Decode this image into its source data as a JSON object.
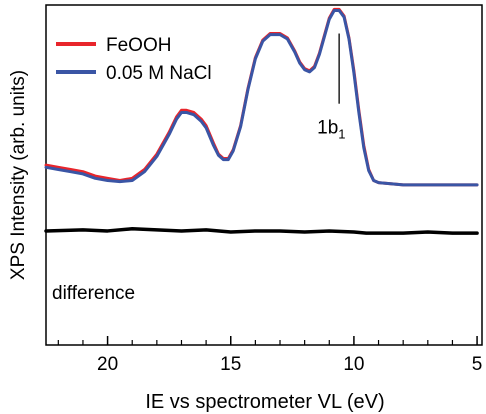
{
  "chart_data": {
    "type": "line",
    "xlabel": "IE vs spectrometer VL (eV)",
    "ylabel": "XPS Intensity (arb. units)",
    "xlim": [
      22.5,
      4.8
    ],
    "x_reversed": true,
    "ylim": [
      -0.55,
      1.0
    ],
    "grid": false,
    "legend_position": "top-left",
    "xticks": [
      20,
      15,
      10,
      5
    ],
    "xtick_labels": [
      "20",
      "15",
      "10",
      "5"
    ],
    "y_tick_labels_shown": false,
    "series": [
      {
        "name": "FeOOH",
        "color": "#e8252b",
        "points": [
          [
            22.5,
            0.27
          ],
          [
            22,
            0.26
          ],
          [
            21.5,
            0.25
          ],
          [
            21,
            0.24
          ],
          [
            20.5,
            0.22
          ],
          [
            20,
            0.21
          ],
          [
            19.5,
            0.2
          ],
          [
            19,
            0.21
          ],
          [
            18.5,
            0.25
          ],
          [
            18,
            0.32
          ],
          [
            17.5,
            0.42
          ],
          [
            17.2,
            0.49
          ],
          [
            17,
            0.52
          ],
          [
            16.8,
            0.52
          ],
          [
            16.5,
            0.51
          ],
          [
            16.2,
            0.48
          ],
          [
            16,
            0.45
          ],
          [
            15.7,
            0.37
          ],
          [
            15.5,
            0.32
          ],
          [
            15.3,
            0.3
          ],
          [
            15.1,
            0.3
          ],
          [
            14.9,
            0.34
          ],
          [
            14.6,
            0.45
          ],
          [
            14.3,
            0.62
          ],
          [
            14,
            0.76
          ],
          [
            13.7,
            0.84
          ],
          [
            13.4,
            0.87
          ],
          [
            13,
            0.87
          ],
          [
            12.7,
            0.85
          ],
          [
            12.4,
            0.79
          ],
          [
            12.2,
            0.74
          ],
          [
            12,
            0.71
          ],
          [
            11.8,
            0.7
          ],
          [
            11.6,
            0.72
          ],
          [
            11.4,
            0.78
          ],
          [
            11.2,
            0.86
          ],
          [
            11,
            0.94
          ],
          [
            10.8,
            0.98
          ],
          [
            10.6,
            0.98
          ],
          [
            10.4,
            0.95
          ],
          [
            10.2,
            0.85
          ],
          [
            10,
            0.7
          ],
          [
            9.8,
            0.52
          ],
          [
            9.6,
            0.36
          ],
          [
            9.4,
            0.25
          ],
          [
            9.2,
            0.2
          ],
          [
            9,
            0.19
          ],
          [
            8.5,
            0.185
          ],
          [
            8,
            0.18
          ],
          [
            7,
            0.18
          ],
          [
            6,
            0.18
          ],
          [
            5,
            0.18
          ]
        ]
      },
      {
        "name": "0.05 M NaCl",
        "color": "#3a55a5",
        "points": [
          [
            22.5,
            0.26
          ],
          [
            22,
            0.25
          ],
          [
            21.5,
            0.24
          ],
          [
            21,
            0.23
          ],
          [
            20.5,
            0.21
          ],
          [
            20,
            0.2
          ],
          [
            19.5,
            0.195
          ],
          [
            19,
            0.2
          ],
          [
            18.5,
            0.24
          ],
          [
            18,
            0.31
          ],
          [
            17.5,
            0.41
          ],
          [
            17.2,
            0.48
          ],
          [
            17,
            0.51
          ],
          [
            16.8,
            0.51
          ],
          [
            16.5,
            0.5
          ],
          [
            16.2,
            0.47
          ],
          [
            16,
            0.44
          ],
          [
            15.7,
            0.36
          ],
          [
            15.5,
            0.315
          ],
          [
            15.3,
            0.295
          ],
          [
            15.1,
            0.295
          ],
          [
            14.9,
            0.335
          ],
          [
            14.6,
            0.445
          ],
          [
            14.3,
            0.615
          ],
          [
            14,
            0.755
          ],
          [
            13.7,
            0.835
          ],
          [
            13.4,
            0.865
          ],
          [
            13,
            0.865
          ],
          [
            12.7,
            0.845
          ],
          [
            12.4,
            0.785
          ],
          [
            12.2,
            0.735
          ],
          [
            12,
            0.705
          ],
          [
            11.8,
            0.695
          ],
          [
            11.6,
            0.715
          ],
          [
            11.4,
            0.775
          ],
          [
            11.2,
            0.855
          ],
          [
            11,
            0.935
          ],
          [
            10.8,
            0.975
          ],
          [
            10.6,
            0.975
          ],
          [
            10.4,
            0.945
          ],
          [
            10.2,
            0.845
          ],
          [
            10,
            0.69
          ],
          [
            9.8,
            0.51
          ],
          [
            9.6,
            0.35
          ],
          [
            9.4,
            0.245
          ],
          [
            9.2,
            0.2
          ],
          [
            9,
            0.19
          ],
          [
            8.5,
            0.185
          ],
          [
            8,
            0.18
          ],
          [
            7,
            0.18
          ],
          [
            6,
            0.18
          ],
          [
            5,
            0.18
          ]
        ]
      },
      {
        "name": "difference",
        "color": "#000000",
        "points": [
          [
            22.5,
            -0.03
          ],
          [
            21,
            -0.025
          ],
          [
            20,
            -0.03
          ],
          [
            19,
            -0.02
          ],
          [
            18,
            -0.025
          ],
          [
            17,
            -0.03
          ],
          [
            16,
            -0.025
          ],
          [
            15,
            -0.035
          ],
          [
            14,
            -0.03
          ],
          [
            13,
            -0.03
          ],
          [
            12,
            -0.035
          ],
          [
            11,
            -0.03
          ],
          [
            10,
            -0.035
          ],
          [
            9.5,
            -0.04
          ],
          [
            9,
            -0.04
          ],
          [
            8,
            -0.04
          ],
          [
            7,
            -0.035
          ],
          [
            6,
            -0.04
          ],
          [
            5,
            -0.04
          ]
        ]
      }
    ],
    "annotations": [
      {
        "text_main": "1b",
        "text_sub": "1",
        "x": 10.6,
        "line_top": 0.87,
        "line_bottom": 0.55
      }
    ],
    "difference_label": "difference"
  }
}
